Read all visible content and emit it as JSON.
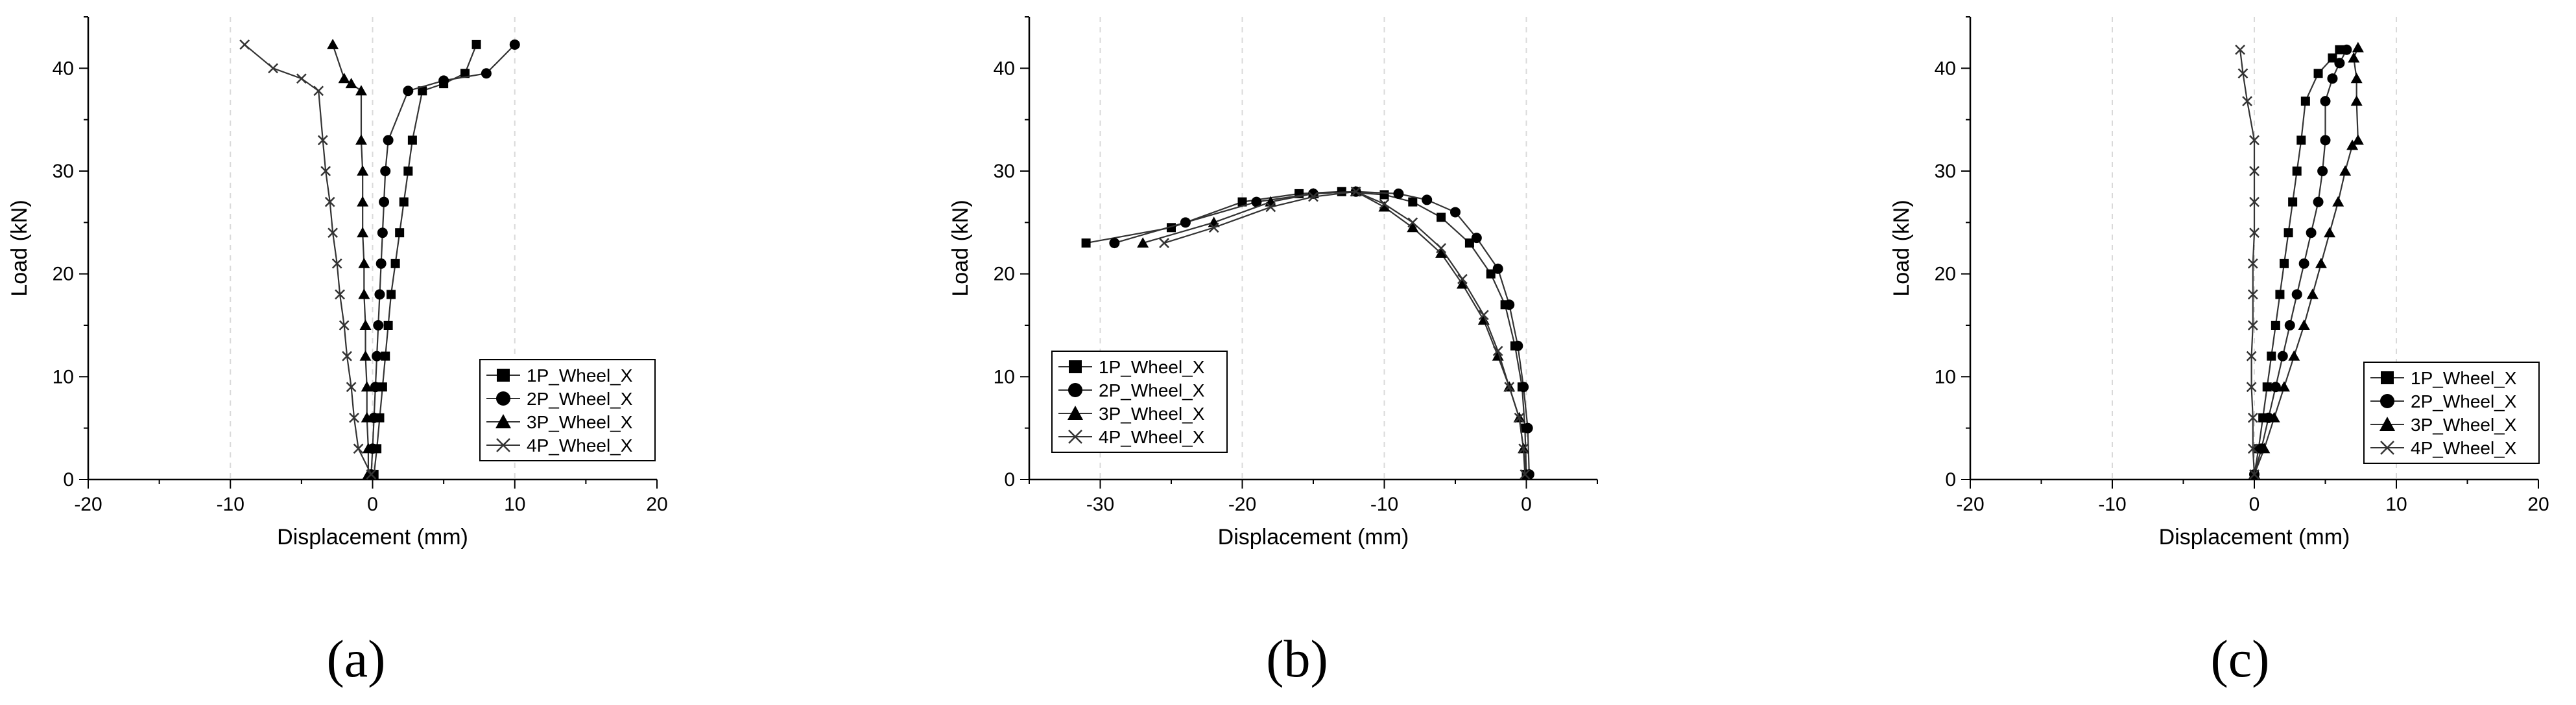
{
  "figure": {
    "panel_labels": [
      "(a)",
      "(b)",
      "(c)"
    ]
  },
  "colors": {
    "axis": "#000000",
    "series_line": "#333333",
    "grid": "#d9d9d9"
  },
  "chart_data": [
    {
      "type": "line",
      "panel": "(a)",
      "xlabel": "Displacement (mm)",
      "ylabel": "Load (kN)",
      "xlim": [
        -20,
        20
      ],
      "ylim": [
        0,
        45
      ],
      "xticks": [
        -20,
        -10,
        0,
        10,
        20
      ],
      "yticks": [
        0,
        10,
        20,
        30,
        40
      ],
      "grid_x": [
        -10,
        0,
        10
      ],
      "legend_position": "lower-right",
      "series": [
        {
          "name": "1P_Wheel_X",
          "marker": "square",
          "x": [
            0.1,
            0.3,
            0.5,
            0.7,
            0.9,
            1.1,
            1.3,
            1.6,
            1.9,
            2.2,
            2.5,
            2.8,
            3.5,
            5.0,
            6.5,
            7.3
          ],
          "y": [
            0.5,
            3,
            6,
            9,
            12,
            15,
            18,
            21,
            24,
            27,
            30,
            33,
            37.8,
            38.5,
            39.5,
            42.3
          ]
        },
        {
          "name": "2P_Wheel_X",
          "marker": "circle",
          "x": [
            -0.1,
            0.0,
            0.1,
            0.2,
            0.3,
            0.4,
            0.5,
            0.6,
            0.7,
            0.8,
            0.9,
            1.1,
            2.5,
            5.0,
            8.0,
            10.0
          ],
          "y": [
            0.5,
            3,
            6,
            9,
            12,
            15,
            18,
            21,
            24,
            27,
            30,
            33,
            37.8,
            38.8,
            39.5,
            42.3
          ]
        },
        {
          "name": "3P_Wheel_X",
          "marker": "triangle",
          "x": [
            -0.3,
            -0.3,
            -0.4,
            -0.4,
            -0.5,
            -0.5,
            -0.6,
            -0.6,
            -0.7,
            -0.7,
            -0.7,
            -0.8,
            -0.8,
            -1.5,
            -2.0,
            -2.8
          ],
          "y": [
            0.5,
            3,
            6,
            9,
            12,
            15,
            18,
            21,
            24,
            27,
            30,
            33,
            37.8,
            38.5,
            39,
            42.3
          ]
        },
        {
          "name": "4P_Wheel_X",
          "marker": "x",
          "x": [
            -0.1,
            -1.0,
            -1.3,
            -1.5,
            -1.8,
            -2.0,
            -2.3,
            -2.5,
            -2.8,
            -3.0,
            -3.3,
            -3.5,
            -3.8,
            -5.0,
            -7.0,
            -9.0
          ],
          "y": [
            0.5,
            3,
            6,
            9,
            12,
            15,
            18,
            21,
            24,
            27,
            30,
            33,
            37.8,
            39,
            40,
            42.3
          ]
        }
      ]
    },
    {
      "type": "line",
      "panel": "(b)",
      "xlabel": "Displacement (mm)",
      "ylabel": "Load (kN)",
      "xlim": [
        -35,
        5
      ],
      "ylim": [
        0,
        45
      ],
      "xticks": [
        -30,
        -20,
        -10,
        0
      ],
      "yticks": [
        0,
        10,
        20,
        30,
        40
      ],
      "grid_x": [
        -30,
        -20,
        -10,
        0
      ],
      "legend_position": "lower-left",
      "series": [
        {
          "name": "1P_Wheel_X",
          "marker": "square",
          "x": [
            -31,
            -25,
            -20,
            -16,
            -13,
            -10,
            -8,
            -6,
            -4,
            -2.5,
            -1.5,
            -0.8,
            -0.3,
            -0.1,
            0
          ],
          "y": [
            23,
            24.5,
            27,
            27.8,
            28,
            27.7,
            27,
            25.5,
            23,
            20,
            17,
            13,
            9,
            5,
            0.5
          ]
        },
        {
          "name": "2P_Wheel_X",
          "marker": "circle",
          "x": [
            -29,
            -24,
            -19,
            -15,
            -12,
            -9,
            -7,
            -5,
            -3.5,
            -2,
            -1.2,
            -0.6,
            -0.2,
            0.1,
            0.2
          ],
          "y": [
            23,
            25,
            27,
            27.8,
            28,
            27.8,
            27.2,
            26,
            23.5,
            20.5,
            17,
            13,
            9,
            5,
            0.5
          ]
        },
        {
          "name": "3P_Wheel_X",
          "marker": "triangle",
          "x": [
            -27,
            -22,
            -18,
            -15,
            -12,
            -10,
            -8,
            -6,
            -4.5,
            -3,
            -2,
            -1.2,
            -0.5,
            -0.2,
            0
          ],
          "y": [
            23,
            25,
            27,
            27.8,
            28,
            26.5,
            24.5,
            22,
            19,
            15.5,
            12,
            9,
            6,
            3,
            0.5
          ]
        },
        {
          "name": "4P_Wheel_X",
          "marker": "x",
          "x": [
            -25.5,
            -22,
            -18,
            -15,
            -12,
            -10,
            -8,
            -6,
            -4.5,
            -3,
            -2,
            -1.2,
            -0.5,
            -0.2,
            -0.1
          ],
          "y": [
            23,
            24.5,
            26.5,
            27.5,
            28,
            26.8,
            25,
            22.5,
            19.5,
            16,
            12.5,
            9,
            6,
            3,
            0.5
          ]
        }
      ]
    },
    {
      "type": "line",
      "panel": "(c)",
      "xlabel": "Displacement (mm)",
      "ylabel": "Load (kN)",
      "xlim": [
        -20,
        20
      ],
      "ylim": [
        0,
        45
      ],
      "xticks": [
        -20,
        -10,
        0,
        10,
        20
      ],
      "yticks": [
        0,
        10,
        20,
        30,
        40
      ],
      "grid_x": [
        -10,
        0,
        10
      ],
      "legend_position": "lower-right",
      "series": [
        {
          "name": "1P_Wheel_X",
          "marker": "square",
          "x": [
            0,
            0.3,
            0.6,
            0.9,
            1.2,
            1.5,
            1.8,
            2.1,
            2.4,
            2.7,
            3.0,
            3.3,
            3.6,
            4.5,
            5.5,
            6.0
          ],
          "y": [
            0.5,
            3,
            6,
            9,
            12,
            15,
            18,
            21,
            24,
            27,
            30,
            33,
            36.8,
            39.5,
            41,
            41.8
          ]
        },
        {
          "name": "2P_Wheel_X",
          "marker": "circle",
          "x": [
            0,
            0.5,
            1.0,
            1.5,
            2.0,
            2.5,
            3.0,
            3.5,
            4.0,
            4.5,
            4.8,
            5.0,
            5.0,
            5.5,
            6.0,
            6.5
          ],
          "y": [
            0.5,
            3,
            6,
            9,
            12,
            15,
            18,
            21,
            24,
            27,
            30,
            33,
            36.8,
            39,
            40.5,
            41.8
          ]
        },
        {
          "name": "3P_Wheel_X",
          "marker": "triangle",
          "x": [
            0,
            0.7,
            1.4,
            2.1,
            2.8,
            3.5,
            4.1,
            4.7,
            5.3,
            5.9,
            6.4,
            6.9,
            7.3,
            7.2,
            7.2,
            7.0,
            7.3
          ],
          "y": [
            0.5,
            3,
            6,
            9,
            12,
            15,
            18,
            21,
            24,
            27,
            30,
            32.5,
            33,
            36.8,
            39,
            41,
            42
          ]
        },
        {
          "name": "4P_Wheel_X",
          "marker": "x",
          "x": [
            0,
            -0.1,
            -0.1,
            -0.2,
            -0.2,
            -0.1,
            -0.1,
            -0.1,
            0,
            0,
            0,
            0,
            -0.5,
            -0.8,
            -1.0
          ],
          "y": [
            0.5,
            3,
            6,
            9,
            12,
            15,
            18,
            21,
            24,
            27,
            30,
            33,
            36.8,
            39.5,
            41.8
          ]
        }
      ]
    }
  ]
}
